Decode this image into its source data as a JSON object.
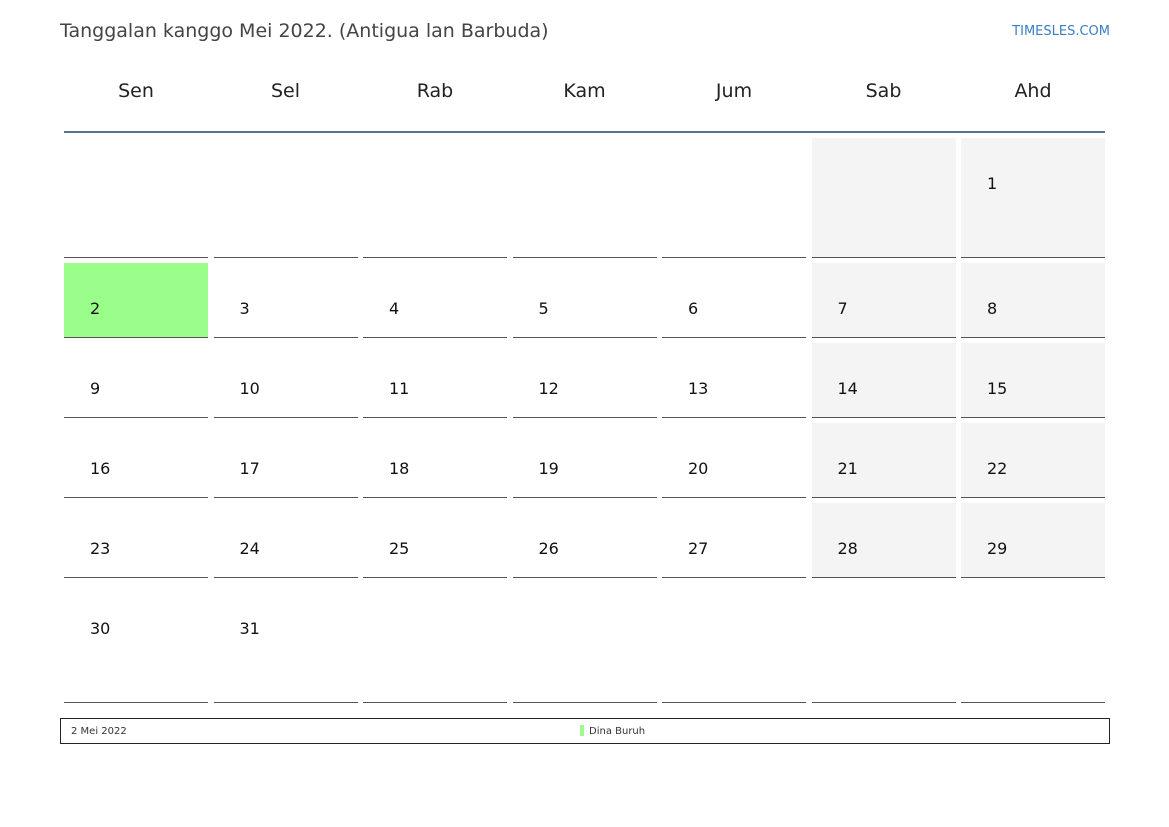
{
  "header": {
    "title": "Tanggalan kanggo Mei 2022. (Antigua lan Barbuda)",
    "brand": "TIMESLES.COM"
  },
  "weekdays": [
    "Sen",
    "Sel",
    "Rab",
    "Kam",
    "Jum",
    "Sab",
    "Ahd"
  ],
  "weeks": [
    [
      "",
      "",
      "",
      "",
      "",
      "",
      "1"
    ],
    [
      "2",
      "3",
      "4",
      "5",
      "6",
      "7",
      "8"
    ],
    [
      "9",
      "10",
      "11",
      "12",
      "13",
      "14",
      "15"
    ],
    [
      "16",
      "17",
      "18",
      "19",
      "20",
      "21",
      "22"
    ],
    [
      "23",
      "24",
      "25",
      "26",
      "27",
      "28",
      "29"
    ],
    [
      "30",
      "31",
      "",
      "",
      "",
      "",
      ""
    ]
  ],
  "holiday_day": "2",
  "colors": {
    "holiday": "#9aff8a",
    "weekend": "#f4f4f4",
    "header_rule": "#5a7192",
    "brand": "#3a7fc1"
  },
  "legend": {
    "date": "2 Mei 2022",
    "name": "Dina Buruh"
  }
}
